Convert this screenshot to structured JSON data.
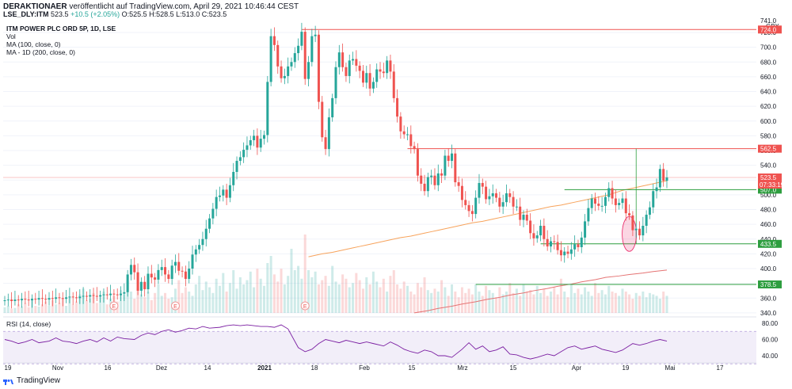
{
  "header": {
    "publisher": "DERAKTIONAER",
    "published": "veröffentlicht auf TradingView.com, April 29, 2021 10:46:44 CEST",
    "symbol": "LSE_DLY:ITM",
    "last": "523.5",
    "change": "+10.5 (+2.05%)",
    "ohlc": "O:525.5 H:528.5 L:513.0 C:523.5"
  },
  "legend": {
    "title": "ITM POWER PLC ORD 5P, 1D, LSE",
    "vol": "Vol",
    "ma100": "MA (100, close, 0)",
    "ma200": "MA - 1D (200, close, 0)"
  },
  "rsi_label": "RSI (14, close)",
  "price_axis": {
    "currency": "GBX",
    "ticks": [
      "741.0",
      "720.0",
      "700.0",
      "680.0",
      "660.0",
      "640.0",
      "620.0",
      "600.0",
      "580.0",
      "560.0",
      "540.0",
      "520.0",
      "500.0",
      "480.0",
      "460.0",
      "440.0",
      "420.0",
      "400.0",
      "380.0",
      "360.0",
      "340.0"
    ]
  },
  "rsi_axis": {
    "ticks": [
      "80.00",
      "60.00",
      "40.00"
    ]
  },
  "time_axis": [
    "19",
    "Nov",
    "16",
    "Dez",
    "14",
    "2021",
    "18",
    "Feb",
    "15",
    "Mrz",
    "15",
    "Apr",
    "19",
    "Mai",
    "17"
  ],
  "event_marker": "E",
  "tags": {
    "level_724": "724.0",
    "level_562": "562.5",
    "last_price": "523.5",
    "countdown": "07:33:19",
    "level_507": "507.0",
    "level_433": "433.5",
    "level_378": "378.5"
  },
  "footer": {
    "brand": "TradingView"
  },
  "colors": {
    "up": "#26a69a",
    "down": "#ef5350",
    "ma100": "#f7a35c",
    "ma200": "#e57373",
    "rsi": "#7b1fa2",
    "support": "#2e9e3f",
    "resistance": "#ef5350"
  },
  "chart_data": {
    "type": "candlestick",
    "title": "ITM POWER PLC ORD 5P, 1D, LSE",
    "ylabel": "GBX",
    "ylim": [
      340,
      741
    ],
    "last_price": 523.5,
    "resistance_levels": [
      724.0,
      562.5
    ],
    "support_levels": [
      507.0,
      433.5,
      378.5
    ],
    "x_labels": [
      "19",
      "Nov",
      "16",
      "Dez",
      "14",
      "2021",
      "18",
      "Feb",
      "15",
      "Mrz",
      "15",
      "Apr",
      "19",
      "Mai",
      "17"
    ],
    "closes": [
      357,
      358,
      356,
      358,
      357,
      359,
      358,
      357,
      359,
      358,
      360,
      359,
      358,
      360,
      359,
      361,
      360,
      359,
      361,
      362,
      361,
      360,
      362,
      363,
      362,
      364,
      363,
      362,
      364,
      365,
      364,
      366,
      365,
      364,
      366,
      368,
      392,
      405,
      395,
      370,
      382,
      372,
      393,
      388,
      385,
      398,
      402,
      392,
      386,
      404,
      409,
      397,
      396,
      386,
      400,
      419,
      426,
      432,
      440,
      454,
      468,
      481,
      497,
      499,
      507,
      496,
      513,
      531,
      546,
      551,
      561,
      567,
      574,
      580,
      564,
      576,
      581,
      653,
      715,
      703,
      674,
      658,
      661,
      674,
      680,
      692,
      702,
      721,
      657,
      680,
      715,
      717,
      626,
      578,
      562,
      605,
      631,
      673,
      693,
      673,
      661,
      682,
      684,
      675,
      668,
      652,
      665,
      644,
      653,
      670,
      667,
      665,
      682,
      667,
      631,
      606,
      586,
      582,
      582,
      566,
      562,
      526,
      515,
      505,
      524,
      526,
      513,
      529,
      526,
      553,
      546,
      556,
      517,
      512,
      493,
      486,
      478,
      474,
      496,
      516,
      511,
      494,
      498,
      502,
      496,
      484,
      490,
      502,
      497,
      484,
      484,
      466,
      473,
      465,
      448,
      441,
      445,
      458,
      440,
      430,
      437,
      436,
      425,
      418,
      423,
      420,
      426,
      433,
      429,
      442,
      464,
      482,
      495,
      488,
      485,
      485,
      497,
      509,
      495,
      486,
      489,
      495,
      475,
      472,
      452,
      454,
      445,
      458,
      473,
      483,
      505,
      510,
      535,
      519,
      523.5
    ],
    "ma100": [
      416,
      418,
      420,
      422,
      424,
      426,
      428,
      430,
      432,
      434,
      436,
      438,
      440,
      442,
      444,
      446,
      448,
      450,
      452,
      454,
      456,
      458,
      460,
      462,
      464,
      466,
      468,
      470,
      472,
      474,
      476,
      478,
      480,
      482,
      484,
      486,
      488,
      490,
      492,
      494,
      496,
      498,
      500,
      503,
      506,
      509,
      511,
      513,
      515,
      517,
      519
    ],
    "ma200": [
      340,
      343,
      346,
      349,
      352,
      355,
      358,
      361,
      364,
      367,
      370,
      373,
      376,
      379,
      382,
      385,
      388,
      390,
      392,
      394,
      396,
      398
    ],
    "rsi": {
      "name": "RSI (14, close)",
      "ylim": [
        30,
        90
      ],
      "values": [
        60,
        58,
        55,
        57,
        60,
        56,
        58,
        62,
        58,
        57,
        55,
        58,
        60,
        57,
        62,
        58,
        63,
        61,
        60,
        65,
        68,
        66,
        70,
        72,
        69,
        71,
        74,
        73,
        76,
        74,
        75,
        77,
        78,
        77,
        78,
        77,
        76,
        76,
        75,
        78,
        73,
        50,
        45,
        48,
        55,
        60,
        58,
        56,
        59,
        57,
        55,
        57,
        55,
        52,
        57,
        53,
        48,
        45,
        43,
        47,
        45,
        40,
        40,
        38,
        48,
        56,
        48,
        52,
        45,
        47,
        51,
        42,
        41,
        38,
        36,
        38,
        42,
        40,
        45,
        50,
        52,
        48,
        50,
        52,
        48,
        46,
        44,
        47,
        55,
        53,
        55,
        58,
        60,
        58
      ]
    }
  }
}
